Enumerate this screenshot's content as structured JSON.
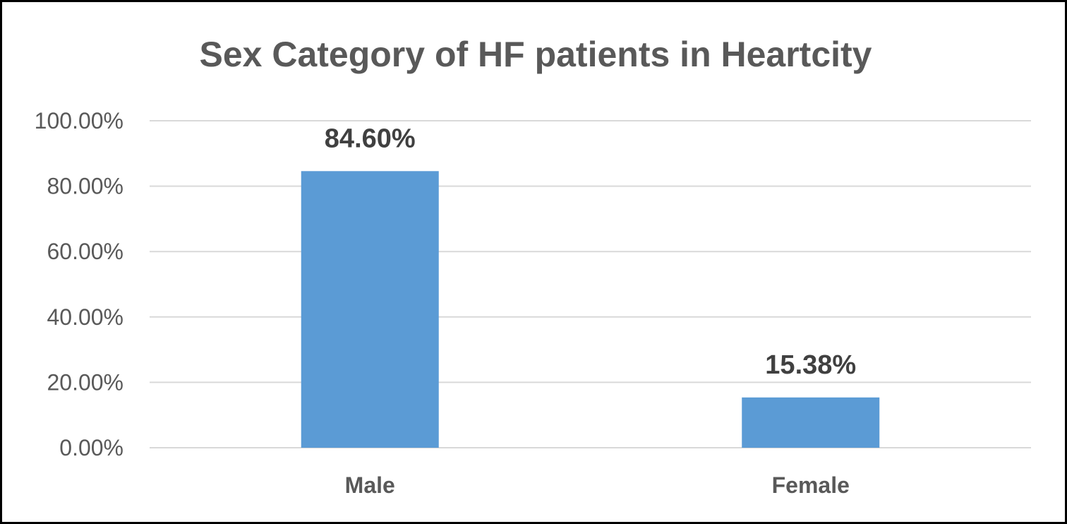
{
  "chart_data": {
    "type": "bar",
    "title": "Sex Category of HF patients in Heartcity",
    "categories": [
      "Male",
      "Female"
    ],
    "values": [
      84.6,
      15.38
    ],
    "data_labels": [
      "84.60%",
      "15.38%"
    ],
    "ylim": [
      0,
      100
    ],
    "y_ticks": [
      0,
      20,
      40,
      60,
      80,
      100
    ],
    "y_tick_labels": [
      "0.00%",
      "20.00%",
      "40.00%",
      "60.00%",
      "80.00%",
      "100.00%"
    ],
    "xlabel": "",
    "ylabel": "",
    "grid": true,
    "legend": "none",
    "bar_color": "#5b9bd5"
  }
}
